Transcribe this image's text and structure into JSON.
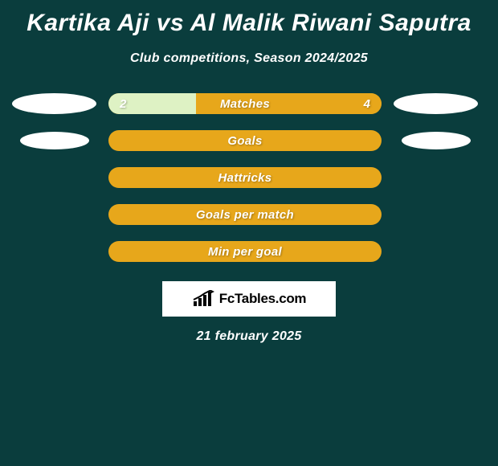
{
  "title": "Kartika Aji vs Al Malik Riwani Saputra",
  "subtitle": "Club competitions, Season 2024/2025",
  "footer_date": "21 february 2025",
  "logo": {
    "text": "FcTables.com",
    "bar_color": "#000000",
    "box_bg": "#ffffff"
  },
  "colors": {
    "page_bg": "#0a3d3d",
    "text": "#ffffff",
    "ellipse": "#ffffff"
  },
  "rows": [
    {
      "label": "Matches",
      "left_val": "2",
      "right_val": "4",
      "left_pct": 32,
      "right_pct": 68,
      "left_color": "#def2c4",
      "right_color": "#e7a71b",
      "left_ellipse_w": 105,
      "left_ellipse_h": 26,
      "right_ellipse_w": 105,
      "right_ellipse_h": 26,
      "show_vals": true
    },
    {
      "label": "Goals",
      "left_val": "",
      "right_val": "",
      "left_pct": 0,
      "right_pct": 100,
      "left_color": "#def2c4",
      "right_color": "#e7a71b",
      "left_ellipse_w": 86,
      "left_ellipse_h": 22,
      "right_ellipse_w": 86,
      "right_ellipse_h": 22,
      "show_vals": false
    },
    {
      "label": "Hattricks",
      "left_val": "",
      "right_val": "",
      "left_pct": 0,
      "right_pct": 100,
      "left_color": "#def2c4",
      "right_color": "#e7a71b",
      "left_ellipse_w": 0,
      "left_ellipse_h": 0,
      "right_ellipse_w": 0,
      "right_ellipse_h": 0,
      "show_vals": false
    },
    {
      "label": "Goals per match",
      "left_val": "",
      "right_val": "",
      "left_pct": 0,
      "right_pct": 100,
      "left_color": "#def2c4",
      "right_color": "#e7a71b",
      "left_ellipse_w": 0,
      "left_ellipse_h": 0,
      "right_ellipse_w": 0,
      "right_ellipse_h": 0,
      "show_vals": false
    },
    {
      "label": "Min per goal",
      "left_val": "",
      "right_val": "",
      "left_pct": 0,
      "right_pct": 100,
      "left_color": "#def2c4",
      "right_color": "#e7a71b",
      "left_ellipse_w": 0,
      "left_ellipse_h": 0,
      "right_ellipse_w": 0,
      "right_ellipse_h": 0,
      "show_vals": false
    }
  ]
}
